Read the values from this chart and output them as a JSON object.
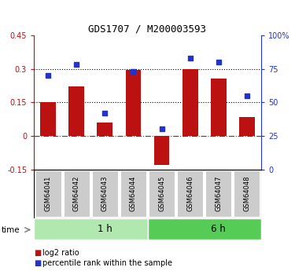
{
  "title": "GDS1707 / M200003593",
  "samples": [
    "GSM64041",
    "GSM64042",
    "GSM64043",
    "GSM64044",
    "GSM64045",
    "GSM64046",
    "GSM64047",
    "GSM64048"
  ],
  "log2_ratio": [
    0.15,
    0.22,
    0.06,
    0.295,
    -0.13,
    0.3,
    0.255,
    0.085
  ],
  "percentile_rank": [
    70,
    78,
    42,
    73,
    30,
    83,
    80,
    55
  ],
  "groups": [
    {
      "label": "1 h",
      "start": 0,
      "end": 4,
      "color": "#b0e8b0"
    },
    {
      "label": "6 h",
      "start": 4,
      "end": 8,
      "color": "#55cc55"
    }
  ],
  "bar_color": "#bb1111",
  "dot_color": "#2233cc",
  "ylim_left": [
    -0.15,
    0.45
  ],
  "ylim_right": [
    0,
    100
  ],
  "yticks_left": [
    -0.15,
    0.0,
    0.15,
    0.3,
    0.45
  ],
  "yticks_right": [
    0,
    25,
    50,
    75,
    100
  ],
  "ytick_labels_left": [
    "-0.15",
    "0",
    "0.15",
    "0.3",
    "0.45"
  ],
  "ytick_labels_right": [
    "0",
    "25",
    "50",
    "75",
    "100%"
  ],
  "hlines_dotted": [
    0.15,
    0.3
  ],
  "hline_zero": 0,
  "background_color": "#ffffff",
  "legend_items": [
    "log2 ratio",
    "percentile rank within the sample"
  ]
}
